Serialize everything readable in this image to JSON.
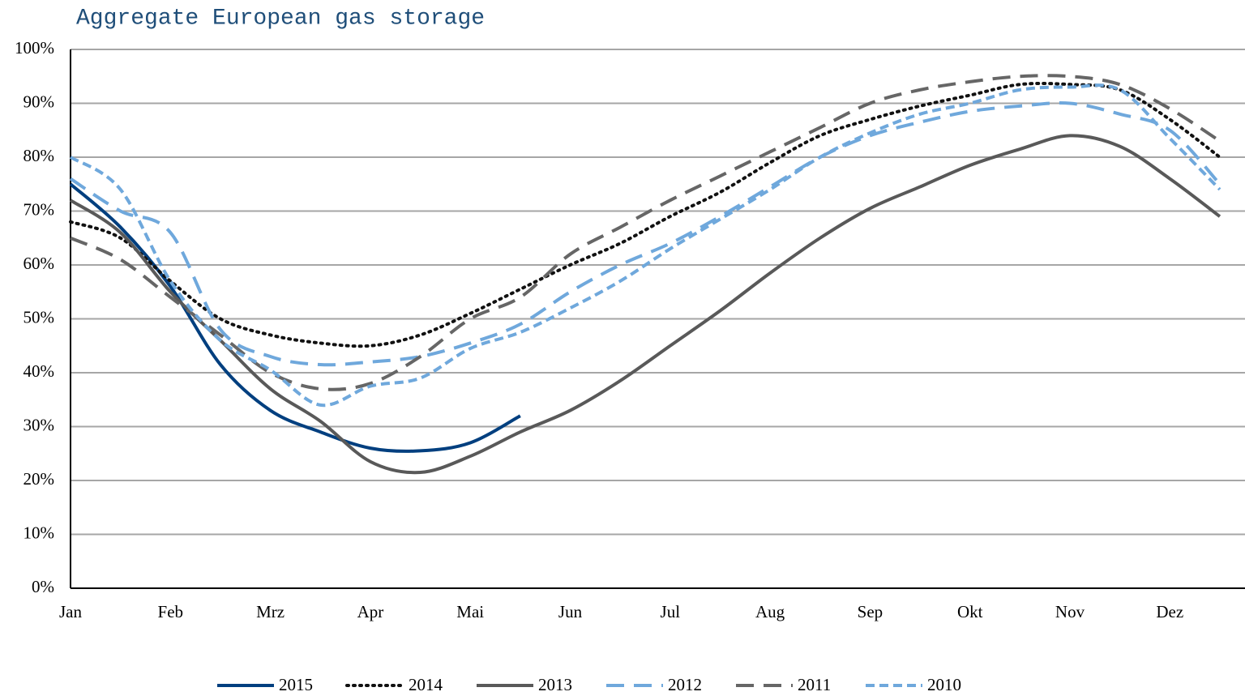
{
  "chart_data": {
    "type": "line",
    "title": "Aggregate European gas storage",
    "categories": [
      "Jan",
      null,
      "Feb",
      null,
      "Mrz",
      null,
      "Apr",
      null,
      "Mai",
      null,
      "Jun",
      null,
      "Jul",
      null,
      "Aug",
      null,
      "Sep",
      null,
      "Okt",
      null,
      "Nov",
      null,
      "Dez",
      null
    ],
    "ylim": [
      0,
      100
    ],
    "yticks": [
      {
        "value": 0,
        "label": "0%"
      },
      {
        "value": 10,
        "label": "10%"
      },
      {
        "value": 20,
        "label": "20%"
      },
      {
        "value": 30,
        "label": "30%"
      },
      {
        "value": 40,
        "label": "40%"
      },
      {
        "value": 50,
        "label": "50%"
      },
      {
        "value": 60,
        "label": "60%"
      },
      {
        "value": 70,
        "label": "70%"
      },
      {
        "value": 80,
        "label": "80%"
      },
      {
        "value": 90,
        "label": "90%"
      },
      {
        "value": 100,
        "label": "100%"
      }
    ],
    "grid": true,
    "legend": "bottom",
    "series": [
      {
        "name": "2015",
        "color": "#003f7f",
        "dash": "solid",
        "values": [
          75,
          67,
          56,
          41.5,
          33,
          29,
          26,
          25.5,
          27,
          32,
          null,
          null,
          null,
          null,
          null,
          null,
          null,
          null,
          null,
          null,
          null,
          null,
          null,
          null
        ]
      },
      {
        "name": "2014",
        "color": "#111111",
        "dash": "dotted",
        "values": [
          68,
          65,
          57,
          50,
          47,
          45.5,
          45,
          47,
          51,
          55.5,
          60,
          64,
          69,
          73.5,
          79,
          84,
          87,
          89.5,
          91.5,
          93.5,
          93.5,
          92.5,
          87,
          80
        ]
      },
      {
        "name": "2013",
        "color": "#595959",
        "dash": "solid",
        "values": [
          72,
          66,
          55,
          46,
          37,
          31,
          23.5,
          21.5,
          24.5,
          29,
          33,
          38.5,
          45,
          51.5,
          58.5,
          65,
          70.5,
          74.5,
          78.5,
          81.5,
          84,
          82,
          76,
          69
        ]
      },
      {
        "name": "2012",
        "color": "#6fa8dc",
        "dash": "long",
        "values": [
          76,
          70,
          66,
          48,
          43,
          41.5,
          42,
          43,
          45.5,
          49,
          55,
          60,
          64,
          69,
          74.5,
          80,
          84,
          86.5,
          88.5,
          89.5,
          90,
          88,
          85,
          75
        ]
      },
      {
        "name": "2011",
        "color": "#666666",
        "dash": "long",
        "values": [
          65,
          61,
          54,
          47,
          40,
          37,
          38,
          43,
          50,
          54,
          62,
          67,
          72,
          76.5,
          81,
          85.5,
          90,
          92.5,
          94,
          95,
          95,
          93.5,
          89,
          83
        ]
      },
      {
        "name": "2010",
        "color": "#6fa8dc",
        "dash": "short",
        "values": [
          80,
          74,
          57,
          46,
          40.5,
          34,
          37.5,
          39,
          44.5,
          47.5,
          52,
          57,
          63,
          68.5,
          74,
          80,
          84.5,
          88,
          90,
          92.5,
          93,
          92.5,
          83.5,
          74
        ]
      }
    ]
  }
}
